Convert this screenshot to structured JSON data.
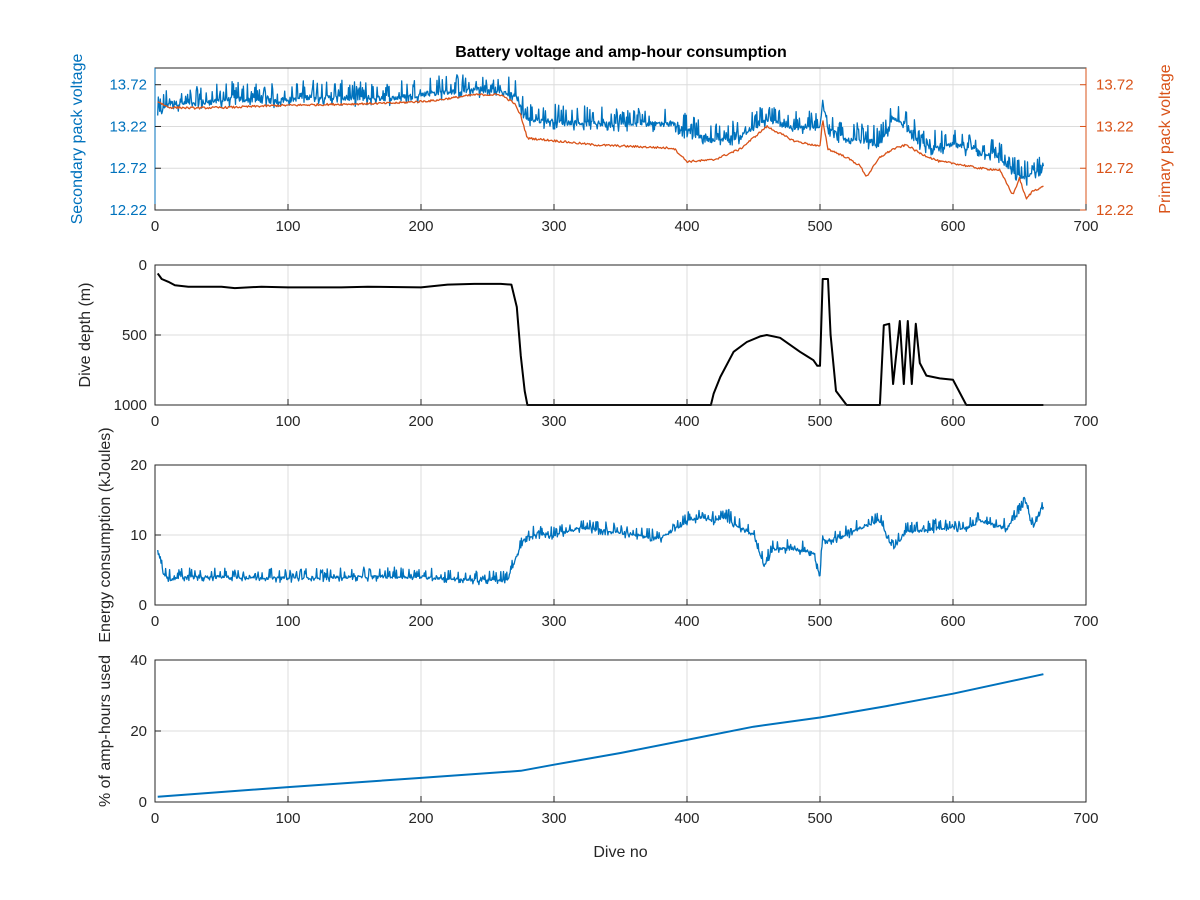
{
  "figure": {
    "title": "Battery voltage and amp-hour consumption",
    "colors": {
      "blue": "#0072bd",
      "orange": "#d95319",
      "black": "#000000",
      "axis": "#262626",
      "grid": "#dcdcdc"
    }
  },
  "chart_data": [
    {
      "type": "line",
      "title": "Battery voltage and amp-hour consumption",
      "xlabel": "",
      "ylabel": "Secondary pack voltage",
      "ylabel_right": "Primary pack voltage",
      "xlim": [
        0,
        700
      ],
      "ylim": [
        12.22,
        13.92
      ],
      "xticks": [
        0,
        100,
        200,
        300,
        400,
        500,
        600,
        700
      ],
      "xtick_labels": [
        "0",
        "100",
        "200",
        "300",
        "400",
        "500",
        "600",
        "700"
      ],
      "yticks": [
        12.22,
        12.72,
        13.22,
        13.72
      ],
      "ytick_labels": [
        "12.22",
        "12.72",
        "13.22",
        "13.72"
      ],
      "yticks_right": [
        12.22,
        12.72,
        13.22,
        13.72
      ],
      "ytick_labels_right": [
        "12.22",
        "12.72",
        "13.22",
        "13.72"
      ],
      "grid": true,
      "series": [
        {
          "axis": "left",
          "color": "#0072bd",
          "noisy": true,
          "x": [
            2,
            10,
            30,
            60,
            90,
            120,
            150,
            180,
            210,
            240,
            260,
            270,
            275,
            280,
            300,
            330,
            360,
            390,
            400,
            420,
            440,
            460,
            480,
            500,
            502,
            506,
            520,
            535,
            545,
            555,
            565,
            575,
            590,
            600,
            620,
            635,
            645,
            655,
            665,
            668
          ],
          "y": [
            13.35,
            13.5,
            13.48,
            13.55,
            13.52,
            13.58,
            13.55,
            13.56,
            13.62,
            13.65,
            13.62,
            13.6,
            13.45,
            13.3,
            13.28,
            13.25,
            13.25,
            13.25,
            13.15,
            13.05,
            13.1,
            13.3,
            13.2,
            13.2,
            13.55,
            13.2,
            13.05,
            13.05,
            13.0,
            13.3,
            13.25,
            13.0,
            12.95,
            13.0,
            12.92,
            12.85,
            12.65,
            12.6,
            12.7,
            12.78
          ]
        },
        {
          "axis": "right",
          "color": "#d95319",
          "noisy": false,
          "x": [
            2,
            10,
            30,
            60,
            90,
            120,
            150,
            180,
            210,
            240,
            260,
            270,
            275,
            280,
            300,
            330,
            360,
            390,
            400,
            420,
            440,
            460,
            480,
            500,
            502,
            506,
            520,
            530,
            535,
            545,
            555,
            565,
            575,
            590,
            600,
            620,
            635,
            645,
            650,
            655,
            660,
            668
          ],
          "y": [
            13.52,
            13.45,
            13.44,
            13.45,
            13.47,
            13.48,
            13.49,
            13.5,
            13.53,
            13.6,
            13.6,
            13.5,
            13.35,
            13.08,
            13.05,
            13.0,
            12.98,
            12.96,
            12.8,
            12.82,
            12.95,
            13.22,
            13.05,
            12.98,
            13.3,
            12.95,
            12.85,
            12.75,
            12.62,
            12.85,
            12.95,
            13.0,
            12.9,
            12.8,
            12.78,
            12.72,
            12.7,
            12.4,
            12.6,
            12.35,
            12.45,
            12.5
          ]
        }
      ]
    },
    {
      "type": "line",
      "xlabel": "",
      "ylabel": "Dive depth (m)",
      "xlim": [
        0,
        700
      ],
      "ylim": [
        0,
        1000
      ],
      "y_reversed": true,
      "xticks": [
        0,
        100,
        200,
        300,
        400,
        500,
        600,
        700
      ],
      "xtick_labels": [
        "0",
        "100",
        "200",
        "300",
        "400",
        "500",
        "600",
        "700"
      ],
      "yticks": [
        0,
        500,
        1000
      ],
      "ytick_labels": [
        "0",
        "500",
        "1000"
      ],
      "grid": true,
      "series": [
        {
          "color": "#000000",
          "noisy": false,
          "x": [
            2,
            5,
            10,
            15,
            25,
            50,
            60,
            80,
            100,
            140,
            160,
            200,
            220,
            240,
            260,
            268,
            272,
            275,
            278,
            280,
            300,
            350,
            400,
            418,
            420,
            425,
            435,
            445,
            455,
            460,
            470,
            485,
            490,
            495,
            498,
            500,
            502,
            506,
            508,
            512,
            520,
            545,
            548,
            552,
            555,
            560,
            563,
            566,
            569,
            572,
            575,
            580,
            590,
            600,
            610,
            668
          ],
          "y": [
            60,
            100,
            120,
            145,
            155,
            155,
            165,
            155,
            160,
            160,
            155,
            160,
            140,
            135,
            135,
            140,
            300,
            650,
            900,
            1000,
            1000,
            1000,
            1000,
            1000,
            920,
            800,
            620,
            550,
            510,
            500,
            520,
            620,
            650,
            680,
            720,
            720,
            100,
            100,
            500,
            900,
            1000,
            1000,
            430,
            420,
            850,
            400,
            850,
            400,
            850,
            420,
            700,
            790,
            810,
            820,
            1000,
            1000
          ]
        }
      ]
    },
    {
      "type": "line",
      "xlabel": "",
      "ylabel": "Energy consumption (kJoules)",
      "xlim": [
        0,
        700
      ],
      "ylim": [
        0,
        20
      ],
      "xticks": [
        0,
        100,
        200,
        300,
        400,
        500,
        600,
        700
      ],
      "xtick_labels": [
        "0",
        "100",
        "200",
        "300",
        "400",
        "500",
        "600",
        "700"
      ],
      "yticks": [
        0,
        10,
        20
      ],
      "ytick_labels": [
        "0",
        "10",
        "20"
      ],
      "grid": true,
      "series": [
        {
          "color": "#0072bd",
          "noisy": true,
          "x": [
            2,
            6,
            12,
            20,
            50,
            100,
            150,
            200,
            240,
            265,
            272,
            278,
            285,
            300,
            320,
            340,
            360,
            380,
            400,
            410,
            420,
            430,
            440,
            450,
            455,
            458,
            465,
            480,
            495,
            500,
            502,
            505,
            515,
            530,
            545,
            555,
            565,
            575,
            590,
            600,
            610,
            620,
            640,
            655,
            660,
            668
          ],
          "y": [
            8,
            4.5,
            3.5,
            4,
            4,
            3.8,
            4,
            4,
            3.5,
            3.5,
            7,
            9.5,
            10,
            10,
            11,
            10.5,
            10,
            9.5,
            12,
            12.5,
            12,
            12.5,
            11,
            10,
            7,
            5.5,
            8,
            8,
            7.5,
            4,
            10,
            9,
            9.5,
            11,
            12,
            8,
            10.5,
            10.5,
            11,
            11,
            11,
            12,
            11,
            14.5,
            11,
            14
          ]
        }
      ]
    },
    {
      "type": "line",
      "xlabel": "Dive no",
      "ylabel": "% of amp-hours used",
      "xlim": [
        0,
        700
      ],
      "ylim": [
        0,
        40
      ],
      "xticks": [
        0,
        100,
        200,
        300,
        400,
        500,
        600,
        700
      ],
      "xtick_labels": [
        "0",
        "100",
        "200",
        "300",
        "400",
        "500",
        "600",
        "700"
      ],
      "yticks": [
        0,
        20,
        40
      ],
      "ytick_labels": [
        "0",
        "20",
        "40"
      ],
      "grid": true,
      "series": [
        {
          "color": "#0072bd",
          "noisy": false,
          "x": [
            2,
            100,
            200,
            275,
            300,
            350,
            400,
            450,
            500,
            550,
            600,
            668
          ],
          "y": [
            1.5,
            4.2,
            6.8,
            8.8,
            10.5,
            13.8,
            17.5,
            21.2,
            23.8,
            27,
            30.5,
            36
          ]
        }
      ]
    }
  ]
}
